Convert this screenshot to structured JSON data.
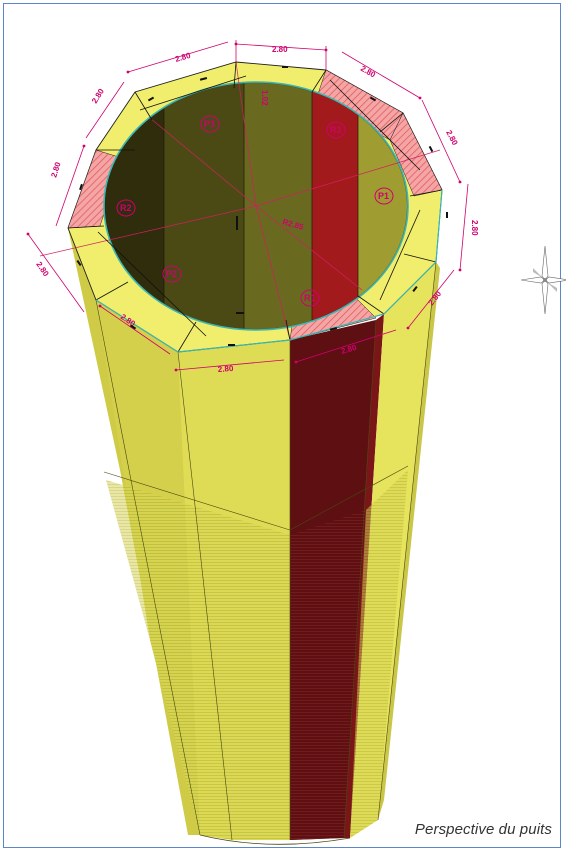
{
  "caption": "Perspective du puits",
  "dimensions": {
    "side_a": "2.80",
    "side_b": "2.80",
    "side_c": "2.80",
    "side_d": "2.80",
    "side_e": "2.80",
    "side_f": "2.80",
    "side_g": "2.80",
    "side_h": "2.80",
    "side_i": "2.80",
    "side_j": "2.80",
    "side_k": "2.80",
    "side_l": "2.80",
    "radius": "R2.85",
    "small": "1.02"
  },
  "tags": {
    "p1": "P1",
    "p2": "P2",
    "p3": "P3",
    "r1": "R1",
    "r2": "R2",
    "r3": "R3"
  },
  "colors": {
    "concrete_face": "#e3e25a",
    "concrete_face_light": "#f1ef6e",
    "concrete_face_dark": "#b8b53d",
    "dark_face": "#5e0f12",
    "dark_face_mid": "#7a1518",
    "inner_shadow": "#3d3a10",
    "inner_wall": "#6b6a22",
    "hatch": "#f08a8a",
    "dimension": "#d0006f",
    "frame": "#5b86c8"
  },
  "icons": {
    "compass": "north-arrow-icon"
  }
}
